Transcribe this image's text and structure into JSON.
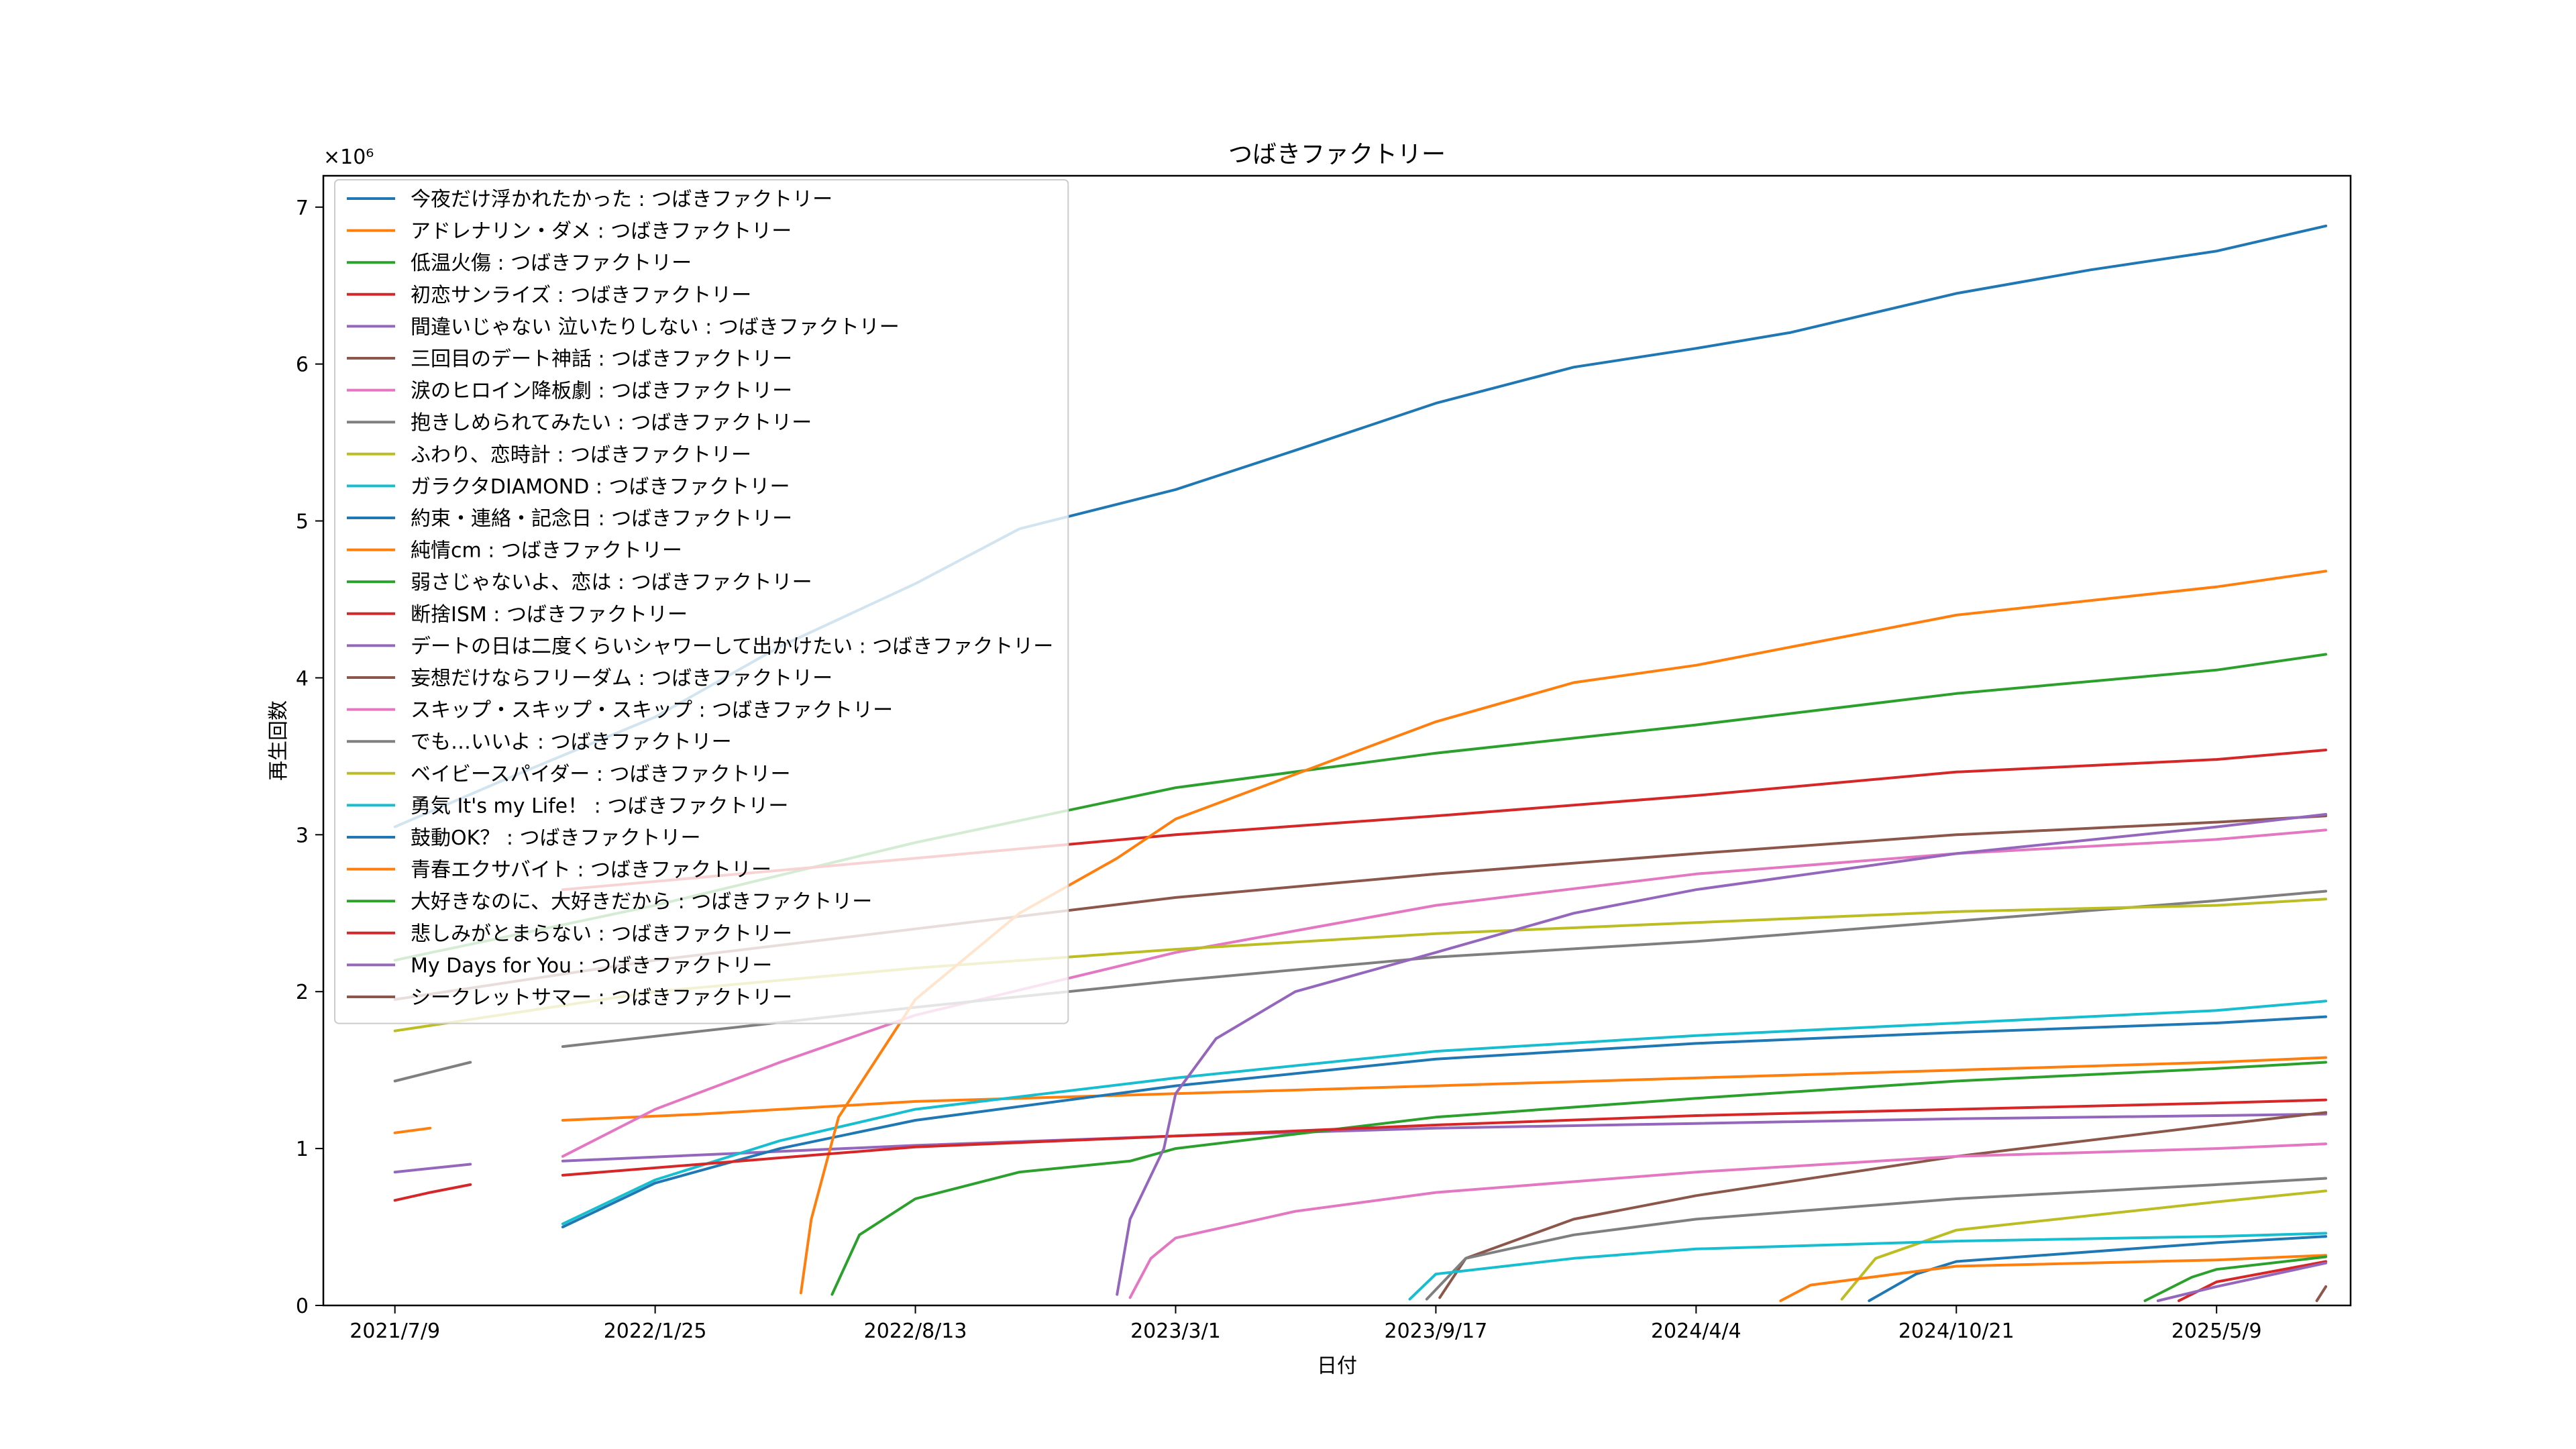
{
  "chart_data": {
    "type": "line",
    "title": "つばきファクトリー",
    "xlabel": "日付",
    "ylabel": "再生回数",
    "y_multiplier_label": "×10⁶",
    "x_ticks": [
      "2021/7/9",
      "2022/1/25",
      "2022/8/13",
      "2023/3/1",
      "2023/9/17",
      "2024/4/4",
      "2024/10/21",
      "2025/5/9"
    ],
    "y_ticks": [
      "0",
      "1",
      "2",
      "3",
      "4",
      "5",
      "6",
      "7"
    ],
    "xlim": [
      "2021-05-15",
      "2025-08-20"
    ],
    "ylim": [
      0,
      7.2
    ],
    "grid": false,
    "legend_position": "upper-left",
    "colors": [
      "#1f77b4",
      "#ff7f0e",
      "#2ca02c",
      "#d62728",
      "#9467bd",
      "#8c564b",
      "#e377c2",
      "#7f7f7f",
      "#bcbd22",
      "#17becf"
    ],
    "series": [
      {
        "name": "今夜だけ浮かれたかった : つばきファクトリー",
        "points": [
          [
            "2021-07-09",
            3.05
          ],
          [
            "2021-10-01",
            3.35
          ],
          [
            "2022-01-25",
            3.75
          ],
          [
            "2022-05-01",
            4.2
          ],
          [
            "2022-08-13",
            4.6
          ],
          [
            "2022-11-01",
            4.95
          ],
          [
            "2023-03-01",
            5.2
          ],
          [
            "2023-06-01",
            5.45
          ],
          [
            "2023-09-17",
            5.75
          ],
          [
            "2024-01-01",
            5.98
          ],
          [
            "2024-04-04",
            6.1
          ],
          [
            "2024-06-15",
            6.2
          ],
          [
            "2024-10-21",
            6.45
          ],
          [
            "2025-02-01",
            6.6
          ],
          [
            "2025-05-09",
            6.72
          ],
          [
            "2025-08-01",
            6.88
          ]
        ]
      },
      {
        "name": "アドレナリン・ダメ : つばきファクトリー",
        "points": [
          [
            "2021-07-09",
            1.1
          ],
          [
            "2021-08-05",
            1.13
          ],
          [
            "2021-09-25",
            null
          ],
          [
            "2021-11-15",
            1.18
          ],
          [
            "2022-03-01",
            1.22
          ],
          [
            "2022-08-13",
            1.3
          ],
          [
            "2023-03-01",
            1.35
          ],
          [
            "2023-09-17",
            1.4
          ],
          [
            "2024-04-04",
            1.45
          ],
          [
            "2024-10-21",
            1.5
          ],
          [
            "2025-05-09",
            1.55
          ],
          [
            "2025-08-01",
            1.58
          ]
        ]
      },
      {
        "name": "低温火傷 : つばきファクトリー",
        "points": [
          [
            "2021-07-09",
            2.2
          ],
          [
            "2022-01-25",
            2.55
          ],
          [
            "2022-08-13",
            2.95
          ],
          [
            "2023-03-01",
            3.3
          ],
          [
            "2023-09-17",
            3.52
          ],
          [
            "2024-04-04",
            3.7
          ],
          [
            "2024-10-21",
            3.9
          ],
          [
            "2025-05-09",
            4.05
          ],
          [
            "2025-08-01",
            4.15
          ]
        ]
      },
      {
        "name": "初恋サンライズ : つばきファクトリー",
        "points": [
          [
            "2021-07-09",
            0.67
          ],
          [
            "2021-08-05",
            0.72
          ],
          [
            "2021-09-05",
            0.77
          ],
          [
            "2021-09-25",
            null
          ],
          [
            "2021-11-15",
            2.65
          ],
          [
            "2022-08-13",
            2.85
          ],
          [
            "2023-03-01",
            3.0
          ],
          [
            "2023-09-17",
            3.12
          ],
          [
            "2024-04-04",
            3.25
          ],
          [
            "2024-10-21",
            3.4
          ],
          [
            "2025-05-09",
            3.48
          ],
          [
            "2025-08-01",
            3.54
          ]
        ]
      },
      {
        "name": "間違いじゃない 泣いたりしない : つばきファクトリー",
        "points": [
          [
            "2021-07-09",
            0.85
          ],
          [
            "2021-09-05",
            0.9
          ],
          [
            "2021-09-25",
            null
          ],
          [
            "2021-11-15",
            0.92
          ],
          [
            "2022-08-13",
            1.02
          ],
          [
            "2023-03-01",
            1.08
          ],
          [
            "2023-09-17",
            1.13
          ],
          [
            "2024-04-04",
            1.16
          ],
          [
            "2024-10-21",
            1.19
          ],
          [
            "2025-05-09",
            1.21
          ],
          [
            "2025-08-01",
            1.22
          ]
        ]
      },
      {
        "name": "三回目のデート神話 : つばきファクトリー",
        "points": [
          [
            "2021-07-09",
            1.95
          ],
          [
            "2022-01-25",
            2.2
          ],
          [
            "2022-08-13",
            2.4
          ],
          [
            "2023-03-01",
            2.6
          ],
          [
            "2023-09-17",
            2.75
          ],
          [
            "2024-04-04",
            2.88
          ],
          [
            "2024-10-21",
            3.0
          ],
          [
            "2025-05-09",
            3.08
          ],
          [
            "2025-08-01",
            3.12
          ]
        ]
      },
      {
        "name": "涙のヒロイン降板劇 : つばきファクトリー",
        "points": [
          [
            "2021-11-15",
            0.95
          ],
          [
            "2022-01-25",
            1.25
          ],
          [
            "2022-05-01",
            1.55
          ],
          [
            "2022-08-13",
            1.85
          ],
          [
            "2023-03-01",
            2.25
          ],
          [
            "2023-09-17",
            2.55
          ],
          [
            "2024-04-04",
            2.75
          ],
          [
            "2024-10-21",
            2.88
          ],
          [
            "2025-05-09",
            2.97
          ],
          [
            "2025-08-01",
            3.03
          ]
        ]
      },
      {
        "name": "抱きしめられてみたい : つばきファクトリー",
        "points": [
          [
            "2021-07-09",
            1.43
          ],
          [
            "2021-09-05",
            1.55
          ],
          [
            "2021-09-25",
            null
          ],
          [
            "2021-11-15",
            1.65
          ],
          [
            "2022-08-13",
            1.9
          ],
          [
            "2023-03-01",
            2.07
          ],
          [
            "2023-09-17",
            2.22
          ],
          [
            "2024-04-04",
            2.32
          ],
          [
            "2024-10-21",
            2.45
          ],
          [
            "2025-05-09",
            2.58
          ],
          [
            "2025-08-01",
            2.64
          ]
        ]
      },
      {
        "name": "ふわり、恋時計 : つばきファクトリー",
        "points": [
          [
            "2021-07-09",
            1.75
          ],
          [
            "2022-01-25",
            2.0
          ],
          [
            "2022-08-13",
            2.15
          ],
          [
            "2023-03-01",
            2.27
          ],
          [
            "2023-09-17",
            2.37
          ],
          [
            "2024-04-04",
            2.44
          ],
          [
            "2024-10-21",
            2.51
          ],
          [
            "2025-05-09",
            2.55
          ],
          [
            "2025-08-01",
            2.59
          ]
        ]
      },
      {
        "name": "ガラクタDIAMOND : つばきファクトリー",
        "points": [
          [
            "2021-11-15",
            0.52
          ],
          [
            "2022-01-25",
            0.8
          ],
          [
            "2022-05-01",
            1.05
          ],
          [
            "2022-08-13",
            1.25
          ],
          [
            "2023-03-01",
            1.45
          ],
          [
            "2023-09-17",
            1.62
          ],
          [
            "2024-04-04",
            1.72
          ],
          [
            "2024-10-21",
            1.8
          ],
          [
            "2025-05-09",
            1.88
          ],
          [
            "2025-08-01",
            1.94
          ]
        ]
      },
      {
        "name": "約束・連絡・記念日 : つばきファクトリー",
        "points": [
          [
            "2021-11-15",
            0.5
          ],
          [
            "2022-01-25",
            0.78
          ],
          [
            "2022-05-01",
            1.0
          ],
          [
            "2022-08-13",
            1.18
          ],
          [
            "2023-03-01",
            1.4
          ],
          [
            "2023-09-17",
            1.57
          ],
          [
            "2024-04-04",
            1.67
          ],
          [
            "2024-10-21",
            1.74
          ],
          [
            "2025-05-09",
            1.8
          ],
          [
            "2025-08-01",
            1.84
          ]
        ]
      },
      {
        "name": "純情cm : つばきファクトリー",
        "points": [
          [
            "2022-05-17",
            0.08
          ],
          [
            "2022-05-25",
            0.55
          ],
          [
            "2022-06-15",
            1.2
          ],
          [
            "2022-08-13",
            1.95
          ],
          [
            "2022-11-01",
            2.5
          ],
          [
            "2023-01-15",
            2.85
          ],
          [
            "2023-03-01",
            3.1
          ],
          [
            "2023-09-17",
            3.72
          ],
          [
            "2024-01-01",
            3.97
          ],
          [
            "2024-04-04",
            4.08
          ],
          [
            "2024-10-21",
            4.4
          ],
          [
            "2025-05-09",
            4.58
          ],
          [
            "2025-08-01",
            4.68
          ]
        ]
      },
      {
        "name": "弱さじゃないよ、恋は : つばきファクトリー",
        "points": [
          [
            "2022-06-10",
            0.07
          ],
          [
            "2022-07-01",
            0.45
          ],
          [
            "2022-08-13",
            0.68
          ],
          [
            "2022-11-01",
            0.85
          ],
          [
            "2023-01-25",
            0.92
          ],
          [
            "2023-03-01",
            1.0
          ],
          [
            "2023-09-17",
            1.2
          ],
          [
            "2024-04-04",
            1.32
          ],
          [
            "2024-10-21",
            1.43
          ],
          [
            "2025-05-09",
            1.51
          ],
          [
            "2025-08-01",
            1.55
          ]
        ]
      },
      {
        "name": "断捨ISM : つばきファクトリー",
        "points": [
          [
            "2021-11-15",
            0.83
          ],
          [
            "2022-08-13",
            1.01
          ],
          [
            "2023-03-01",
            1.08
          ],
          [
            "2023-09-17",
            1.15
          ],
          [
            "2024-04-04",
            1.21
          ],
          [
            "2024-10-21",
            1.25
          ],
          [
            "2025-05-09",
            1.29
          ],
          [
            "2025-08-01",
            1.31
          ]
        ]
      },
      {
        "name": "デートの日は二度くらいシャワーして出かけたい : つばきファクトリー",
        "points": [
          [
            "2023-01-15",
            0.07
          ],
          [
            "2023-01-25",
            0.55
          ],
          [
            "2023-02-20",
            1.0
          ],
          [
            "2023-03-01",
            1.35
          ],
          [
            "2023-04-01",
            1.7
          ],
          [
            "2023-06-01",
            2.0
          ],
          [
            "2023-09-17",
            2.25
          ],
          [
            "2024-01-01",
            2.5
          ],
          [
            "2024-04-04",
            2.65
          ],
          [
            "2024-10-21",
            2.88
          ],
          [
            "2025-05-09",
            3.05
          ],
          [
            "2025-08-01",
            3.13
          ]
        ]
      },
      {
        "name": "妄想だけならフリーダム : つばきファクトリー",
        "points": [
          [
            "2023-09-20",
            0.05
          ],
          [
            "2023-10-10",
            0.3
          ],
          [
            "2024-01-01",
            0.55
          ],
          [
            "2024-04-04",
            0.7
          ],
          [
            "2024-10-21",
            0.95
          ],
          [
            "2025-05-09",
            1.15
          ],
          [
            "2025-08-01",
            1.23
          ]
        ]
      },
      {
        "name": "スキップ・スキップ・スキップ : つばきファクトリー",
        "points": [
          [
            "2023-01-25",
            0.05
          ],
          [
            "2023-02-10",
            0.3
          ],
          [
            "2023-03-01",
            0.43
          ],
          [
            "2023-06-01",
            0.6
          ],
          [
            "2023-09-17",
            0.72
          ],
          [
            "2024-04-04",
            0.85
          ],
          [
            "2024-10-21",
            0.95
          ],
          [
            "2025-05-09",
            1.0
          ],
          [
            "2025-08-01",
            1.03
          ]
        ]
      },
      {
        "name": "でも…いいよ : つばきファクトリー",
        "points": [
          [
            "2023-09-10",
            0.04
          ],
          [
            "2023-10-10",
            0.3
          ],
          [
            "2024-01-01",
            0.45
          ],
          [
            "2024-04-04",
            0.55
          ],
          [
            "2024-10-21",
            0.68
          ],
          [
            "2025-05-09",
            0.77
          ],
          [
            "2025-08-01",
            0.81
          ]
        ]
      },
      {
        "name": "ベイビースパイダー : つばきファクトリー",
        "points": [
          [
            "2024-07-25",
            0.04
          ],
          [
            "2024-08-20",
            0.3
          ],
          [
            "2024-10-21",
            0.48
          ],
          [
            "2025-05-09",
            0.66
          ],
          [
            "2025-08-01",
            0.73
          ]
        ]
      },
      {
        "name": "勇気 It's my Life！ : つばきファクトリー",
        "points": [
          [
            "2023-08-28",
            0.04
          ],
          [
            "2023-09-17",
            0.2
          ],
          [
            "2024-01-01",
            0.3
          ],
          [
            "2024-04-04",
            0.36
          ],
          [
            "2024-10-21",
            0.41
          ],
          [
            "2025-05-09",
            0.44
          ],
          [
            "2025-08-01",
            0.46
          ]
        ]
      },
      {
        "name": "鼓動OK？ : つばきファクトリー",
        "points": [
          [
            "2024-08-15",
            0.03
          ],
          [
            "2024-09-20",
            0.2
          ],
          [
            "2024-10-21",
            0.28
          ],
          [
            "2025-05-09",
            0.4
          ],
          [
            "2025-08-01",
            0.44
          ]
        ]
      },
      {
        "name": "青春エクサバイト : つばきファクトリー",
        "points": [
          [
            "2024-06-08",
            0.03
          ],
          [
            "2024-07-01",
            0.13
          ],
          [
            "2024-10-21",
            0.25
          ],
          [
            "2025-05-09",
            0.29
          ],
          [
            "2025-08-01",
            0.32
          ]
        ]
      },
      {
        "name": "大好きなのに、大好きだから : つばきファクトリー",
        "points": [
          [
            "2025-03-15",
            0.03
          ],
          [
            "2025-04-20",
            0.18
          ],
          [
            "2025-05-09",
            0.23
          ],
          [
            "2025-08-01",
            0.31
          ]
        ]
      },
      {
        "name": "悲しみがとまらない : つばきファクトリー",
        "points": [
          [
            "2025-04-10",
            0.03
          ],
          [
            "2025-05-09",
            0.15
          ],
          [
            "2025-08-01",
            0.28
          ]
        ]
      },
      {
        "name": "My Days for You : つばきファクトリー",
        "points": [
          [
            "2025-03-25",
            0.03
          ],
          [
            "2025-05-09",
            0.12
          ],
          [
            "2025-08-01",
            0.27
          ]
        ]
      },
      {
        "name": "シークレットサマー : つばきファクトリー",
        "points": [
          [
            "2025-07-25",
            0.03
          ],
          [
            "2025-08-01",
            0.12
          ]
        ]
      }
    ]
  }
}
